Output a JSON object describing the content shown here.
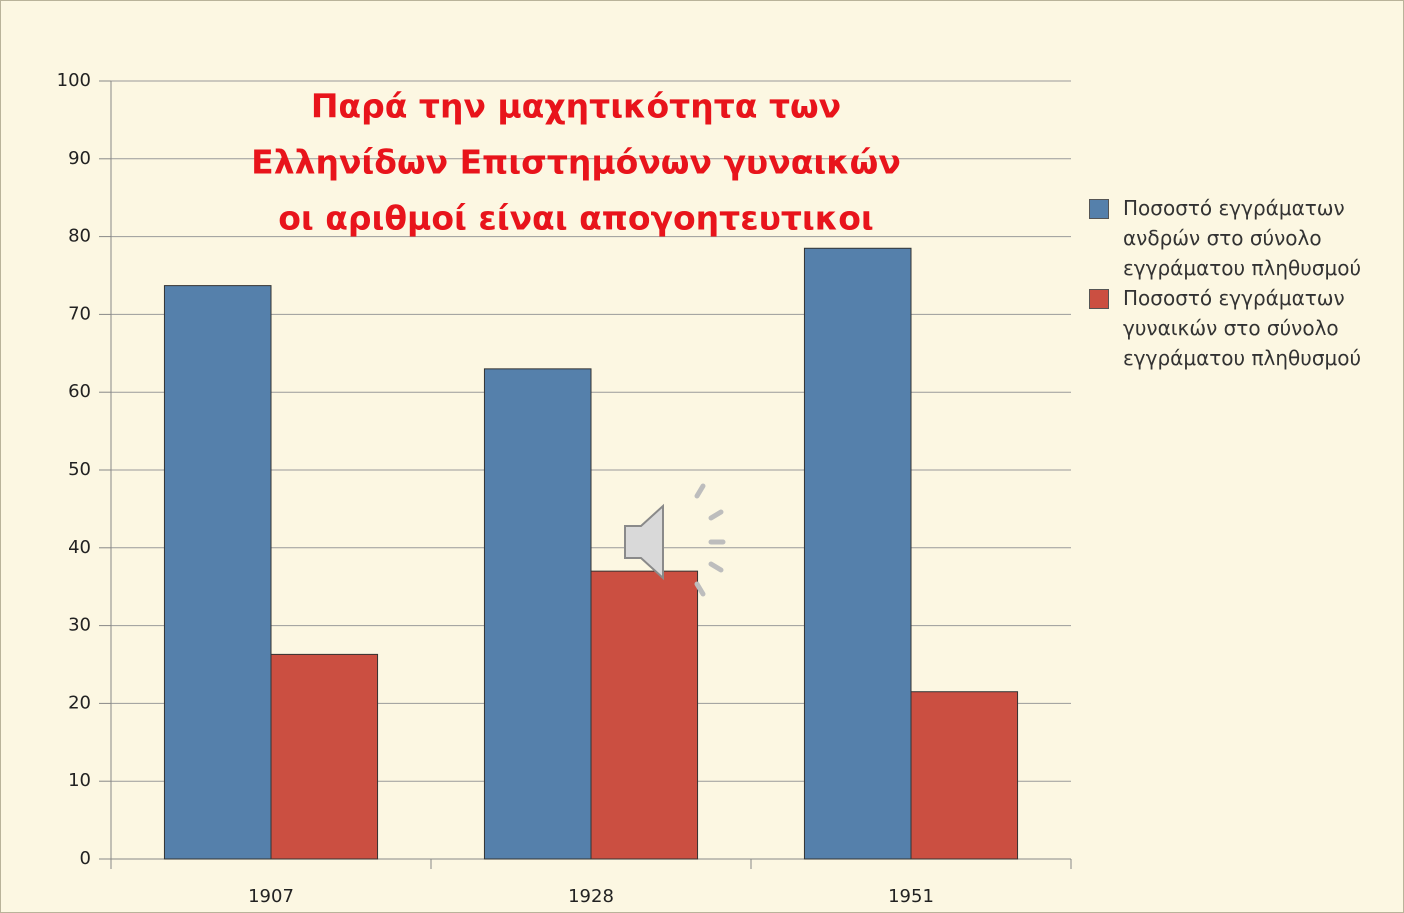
{
  "chart_data": {
    "type": "bar",
    "title": [
      "Παρά την μαχητικότητα των",
      "Ελληνίδων Επιστημόνων γυναικών",
      "οι αριθμοί είναι απογοητευτικοι"
    ],
    "categories": [
      "1907",
      "1928",
      "1951"
    ],
    "series": [
      {
        "name": "Ποσοστό εγγράματων ανδρών στο σύνολο εγγράματου πληθυσμού",
        "color": "#5580ab",
        "values": [
          73.7,
          63,
          78.5
        ]
      },
      {
        "name": "Ποσοστό εγγράματων γυναικών στο σύνολο εγγράματου πληθυσμού",
        "color": "#cb4f41",
        "values": [
          26.3,
          37,
          21.5
        ]
      }
    ],
    "ylim": [
      0,
      100
    ],
    "yticks": [
      0,
      10,
      20,
      30,
      40,
      50,
      60,
      70,
      80,
      90,
      100
    ],
    "grid": true,
    "legend": "right"
  }
}
